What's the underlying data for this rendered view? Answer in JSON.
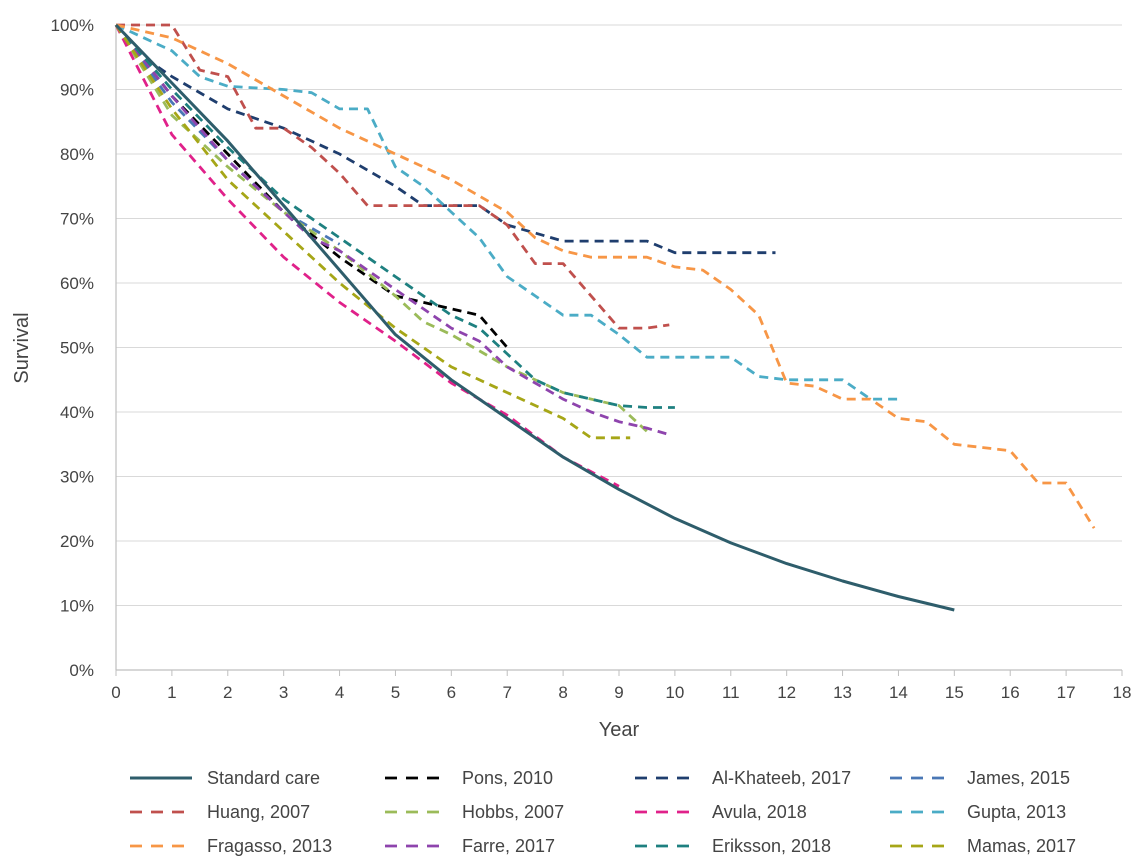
{
  "chart_data": {
    "type": "line",
    "title": "",
    "xlabel": "Year",
    "ylabel": "Survival",
    "xlim": [
      0,
      18
    ],
    "ylim": [
      0,
      100
    ],
    "x_ticks": [
      "0",
      "1",
      "2",
      "3",
      "4",
      "5",
      "6",
      "7",
      "8",
      "9",
      "10",
      "11",
      "12",
      "13",
      "14",
      "15",
      "16",
      "17",
      "18"
    ],
    "y_ticks": [
      "0%",
      "10%",
      "20%",
      "30%",
      "40%",
      "50%",
      "60%",
      "70%",
      "80%",
      "90%",
      "100%"
    ],
    "grid": "horizontal",
    "legend_position": "bottom",
    "series": [
      {
        "name": "Standard care",
        "color": "#2e5d6b",
        "style": "solid",
        "points": [
          [
            0,
            100
          ],
          [
            1,
            91
          ],
          [
            2,
            82
          ],
          [
            3,
            72
          ],
          [
            4,
            62
          ],
          [
            5,
            52
          ],
          [
            6,
            45
          ],
          [
            7,
            39
          ],
          [
            8,
            33
          ],
          [
            9,
            28
          ],
          [
            10,
            23.5
          ],
          [
            11,
            19.7
          ],
          [
            12,
            16.5
          ],
          [
            13,
            13.8
          ],
          [
            14,
            11.4
          ],
          [
            15,
            9.3
          ]
        ]
      },
      {
        "name": "Pons, 2010",
        "color": "#000000",
        "style": "dashed",
        "points": [
          [
            0,
            100
          ],
          [
            1,
            89
          ],
          [
            2,
            80
          ],
          [
            3,
            71
          ],
          [
            4,
            64
          ],
          [
            5,
            58
          ],
          [
            6,
            56
          ],
          [
            6.5,
            55
          ],
          [
            7,
            50
          ]
        ]
      },
      {
        "name": "Al-Khateeb, 2017",
        "color": "#1f3e6e",
        "style": "dashed",
        "points": [
          [
            0,
            100
          ],
          [
            0.5,
            95
          ],
          [
            1,
            92
          ],
          [
            2,
            87
          ],
          [
            3,
            84
          ],
          [
            4,
            80
          ],
          [
            5,
            75
          ],
          [
            5.5,
            72
          ],
          [
            6.5,
            72
          ],
          [
            7,
            69
          ],
          [
            8,
            66.5
          ],
          [
            9,
            66.5
          ],
          [
            9.5,
            66.5
          ],
          [
            10,
            64.7
          ],
          [
            11,
            64.7
          ],
          [
            11.8,
            64.7
          ]
        ]
      },
      {
        "name": "James, 2015",
        "color": "#4a77b5",
        "style": "dashed",
        "points": [
          [
            0,
            100
          ],
          [
            1,
            88
          ],
          [
            2,
            79
          ],
          [
            3,
            71
          ],
          [
            4,
            66
          ]
        ]
      },
      {
        "name": "Huang, 2007",
        "color": "#c0504d",
        "style": "dashed",
        "points": [
          [
            0,
            100
          ],
          [
            1,
            100
          ],
          [
            1.5,
            93
          ],
          [
            2,
            92
          ],
          [
            2.5,
            84
          ],
          [
            3,
            84
          ],
          [
            3.5,
            81
          ],
          [
            4,
            77
          ],
          [
            4.5,
            72
          ],
          [
            5,
            72
          ],
          [
            6,
            72
          ],
          [
            6.5,
            72
          ],
          [
            7,
            69
          ],
          [
            7.5,
            63
          ],
          [
            8,
            63
          ],
          [
            8.5,
            58
          ],
          [
            9,
            53
          ],
          [
            9.5,
            53
          ],
          [
            9.9,
            53.5
          ]
        ]
      },
      {
        "name": "Hobbs, 2007",
        "color": "#9bbb59",
        "style": "dashed",
        "points": [
          [
            0,
            100
          ],
          [
            1,
            86
          ],
          [
            2,
            78
          ],
          [
            3,
            71
          ],
          [
            4,
            65
          ],
          [
            5,
            58
          ],
          [
            5.5,
            54
          ],
          [
            6,
            52
          ],
          [
            7,
            47
          ],
          [
            8,
            43
          ],
          [
            9,
            41
          ],
          [
            9.5,
            37
          ]
        ]
      },
      {
        "name": "Avula, 2018",
        "color": "#e0218a",
        "style": "dashed",
        "points": [
          [
            0,
            100
          ],
          [
            1,
            83
          ],
          [
            2,
            73
          ],
          [
            3,
            64
          ],
          [
            4,
            57
          ],
          [
            5,
            51
          ],
          [
            6,
            44.5
          ],
          [
            7,
            39.5
          ],
          [
            8,
            33
          ],
          [
            9,
            28.5
          ]
        ]
      },
      {
        "name": "Gupta, 2013",
        "color": "#4bacc6",
        "style": "dashed",
        "points": [
          [
            0,
            100
          ],
          [
            1,
            96
          ],
          [
            1.5,
            92
          ],
          [
            2,
            90.5
          ],
          [
            3,
            90
          ],
          [
            3.5,
            89.5
          ],
          [
            4,
            87
          ],
          [
            4.5,
            87
          ],
          [
            5,
            78
          ],
          [
            5.5,
            75
          ],
          [
            6,
            71
          ],
          [
            6.5,
            67
          ],
          [
            7,
            61
          ],
          [
            7.5,
            58
          ],
          [
            8,
            55
          ],
          [
            8.5,
            55
          ],
          [
            9,
            52
          ],
          [
            9.5,
            48.5
          ],
          [
            10,
            48.5
          ],
          [
            11,
            48.5
          ],
          [
            11.5,
            45.5
          ],
          [
            12,
            45
          ],
          [
            13,
            45
          ],
          [
            13.5,
            42
          ],
          [
            14,
            42
          ]
        ]
      },
      {
        "name": "Fragasso, 2013",
        "color": "#f79646",
        "style": "dashed",
        "points": [
          [
            0,
            100
          ],
          [
            1,
            98
          ],
          [
            2,
            94
          ],
          [
            3,
            89
          ],
          [
            4,
            84
          ],
          [
            5,
            80
          ],
          [
            6,
            76
          ],
          [
            7,
            71
          ],
          [
            7.5,
            67
          ],
          [
            8,
            65
          ],
          [
            8.5,
            64
          ],
          [
            9.5,
            64
          ],
          [
            10,
            62.5
          ],
          [
            10.5,
            62
          ],
          [
            11,
            59
          ],
          [
            11.5,
            55
          ],
          [
            12,
            44.5
          ],
          [
            12.5,
            44
          ],
          [
            13,
            42
          ],
          [
            13.5,
            42
          ],
          [
            14,
            39
          ],
          [
            14.5,
            38.5
          ],
          [
            15,
            35
          ],
          [
            16,
            34
          ],
          [
            16.5,
            29
          ],
          [
            17,
            29
          ],
          [
            17.5,
            22
          ]
        ]
      },
      {
        "name": "Farre, 2017",
        "color": "#8e44ad",
        "style": "dashed",
        "points": [
          [
            0,
            100
          ],
          [
            1,
            89
          ],
          [
            2,
            79
          ],
          [
            3,
            71
          ],
          [
            3.5,
            67
          ],
          [
            4,
            65
          ],
          [
            5,
            59
          ],
          [
            6,
            53
          ],
          [
            6.5,
            51
          ],
          [
            7,
            47
          ],
          [
            8,
            42
          ],
          [
            8.5,
            40
          ],
          [
            9,
            38.5
          ],
          [
            9.5,
            37.5
          ],
          [
            9.9,
            36.5
          ]
        ]
      },
      {
        "name": "Eriksson, 2018",
        "color": "#1e8080",
        "style": "dashed",
        "points": [
          [
            0,
            100
          ],
          [
            1,
            90
          ],
          [
            2,
            81
          ],
          [
            3,
            73
          ],
          [
            4,
            67
          ],
          [
            5,
            61
          ],
          [
            6,
            55
          ],
          [
            6.5,
            53
          ],
          [
            7,
            49
          ],
          [
            7.5,
            45
          ],
          [
            8,
            43
          ],
          [
            9,
            41
          ],
          [
            9.5,
            40.7
          ],
          [
            10,
            40.7
          ]
        ]
      },
      {
        "name": "Mamas, 2017",
        "color": "#a6a617",
        "style": "dashed",
        "points": [
          [
            0,
            100
          ],
          [
            1,
            87
          ],
          [
            2,
            76
          ],
          [
            3,
            68
          ],
          [
            4,
            60
          ],
          [
            5,
            53
          ],
          [
            6,
            47
          ],
          [
            7,
            43
          ],
          [
            8,
            39
          ],
          [
            8.5,
            36
          ],
          [
            9,
            36
          ],
          [
            9.2,
            36
          ]
        ]
      }
    ]
  }
}
